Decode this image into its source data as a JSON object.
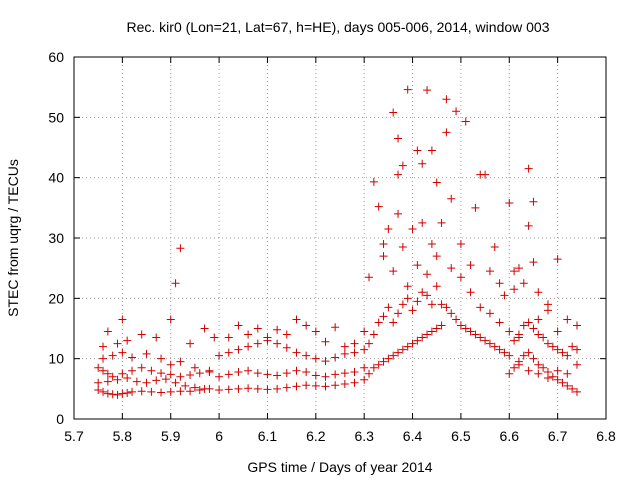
{
  "chart_data": {
    "type": "scatter",
    "title": "Rec. kir0 (Lon=21, Lat=67, h=HE), days 005-006, 2014, window 003",
    "xlabel": "GPS time / Days of year 2014",
    "ylabel": "STEC from uqrg / TECUs",
    "xlim": [
      5.7,
      6.8
    ],
    "ylim": [
      0,
      60
    ],
    "xticks": [
      "5.7",
      "5.8",
      "5.9",
      "6",
      "6.1",
      "6.2",
      "6.3",
      "6.4",
      "6.5",
      "6.6",
      "6.7",
      "6.8"
    ],
    "yticks": [
      "0",
      "10",
      "20",
      "30",
      "40",
      "50",
      "60"
    ],
    "grid": true,
    "marker": "+",
    "color": "#d00000",
    "series": [
      {
        "name": "STEC",
        "points": [
          [
            5.75,
            4.8
          ],
          [
            5.76,
            4.5
          ],
          [
            5.77,
            4.2
          ],
          [
            5.78,
            4.1
          ],
          [
            5.79,
            4.0
          ],
          [
            5.8,
            4.2
          ],
          [
            5.81,
            4.3
          ],
          [
            5.82,
            4.5
          ],
          [
            5.84,
            4.6
          ],
          [
            5.86,
            4.5
          ],
          [
            5.88,
            4.4
          ],
          [
            5.9,
            4.5
          ],
          [
            5.92,
            4.6
          ],
          [
            5.94,
            4.6
          ],
          [
            5.96,
            4.8
          ],
          [
            5.98,
            5.0
          ],
          [
            5.75,
            8.5
          ],
          [
            5.76,
            8.0
          ],
          [
            5.77,
            7.5
          ],
          [
            5.78,
            7.0
          ],
          [
            5.8,
            7.5
          ],
          [
            5.82,
            8.0
          ],
          [
            5.84,
            8.5
          ],
          [
            5.86,
            8.0
          ],
          [
            5.88,
            7.6
          ],
          [
            5.9,
            7.4
          ],
          [
            5.92,
            7.0
          ],
          [
            5.94,
            7.3
          ],
          [
            5.96,
            7.6
          ],
          [
            5.98,
            7.8
          ],
          [
            5.75,
            6.0
          ],
          [
            5.77,
            6.2
          ],
          [
            5.79,
            6.5
          ],
          [
            5.81,
            6.8
          ],
          [
            5.83,
            6.2
          ],
          [
            5.85,
            6.0
          ],
          [
            5.87,
            6.4
          ],
          [
            5.89,
            6.6
          ],
          [
            5.91,
            6.0
          ],
          [
            5.93,
            5.5
          ],
          [
            5.95,
            5.2
          ],
          [
            5.97,
            5.0
          ],
          [
            5.76,
            10.0
          ],
          [
            5.78,
            10.5
          ],
          [
            5.8,
            11.0
          ],
          [
            5.82,
            10.2
          ],
          [
            5.85,
            10.8
          ],
          [
            5.88,
            10.0
          ],
          [
            5.9,
            9.0
          ],
          [
            5.92,
            9.5
          ],
          [
            5.95,
            8.5
          ],
          [
            5.98,
            8.0
          ],
          [
            5.76,
            12.0
          ],
          [
            5.77,
            14.5
          ],
          [
            5.79,
            12.5
          ],
          [
            5.8,
            16.5
          ],
          [
            5.81,
            13.0
          ],
          [
            5.84,
            14.0
          ],
          [
            5.87,
            13.5
          ],
          [
            5.9,
            16.5
          ],
          [
            5.91,
            22.5
          ],
          [
            5.92,
            28.3
          ],
          [
            5.94,
            12.5
          ],
          [
            5.97,
            15.0
          ],
          [
            5.99,
            13.5
          ],
          [
            6.0,
            4.8
          ],
          [
            6.02,
            4.9
          ],
          [
            6.04,
            5.0
          ],
          [
            6.06,
            5.1
          ],
          [
            6.08,
            5.0
          ],
          [
            6.1,
            4.9
          ],
          [
            6.12,
            5.0
          ],
          [
            6.14,
            5.2
          ],
          [
            6.16,
            5.4
          ],
          [
            6.18,
            5.6
          ],
          [
            6.2,
            5.5
          ],
          [
            6.22,
            5.4
          ],
          [
            6.24,
            5.6
          ],
          [
            6.26,
            5.8
          ],
          [
            6.28,
            6.0
          ],
          [
            6.3,
            6.5
          ],
          [
            6.0,
            7.0
          ],
          [
            6.02,
            7.4
          ],
          [
            6.04,
            7.8
          ],
          [
            6.06,
            8.0
          ],
          [
            6.08,
            7.6
          ],
          [
            6.1,
            7.4
          ],
          [
            6.12,
            7.2
          ],
          [
            6.14,
            7.6
          ],
          [
            6.16,
            8.0
          ],
          [
            6.18,
            7.8
          ],
          [
            6.2,
            7.2
          ],
          [
            6.22,
            7.0
          ],
          [
            6.24,
            7.4
          ],
          [
            6.26,
            7.6
          ],
          [
            6.28,
            7.8
          ],
          [
            6.3,
            8.5
          ],
          [
            6.0,
            10.5
          ],
          [
            6.02,
            11.0
          ],
          [
            6.04,
            11.5
          ],
          [
            6.06,
            12.0
          ],
          [
            6.08,
            12.5
          ],
          [
            6.1,
            13.0
          ],
          [
            6.12,
            12.5
          ],
          [
            6.14,
            11.8
          ],
          [
            6.16,
            11.0
          ],
          [
            6.18,
            10.5
          ],
          [
            6.2,
            10.0
          ],
          [
            6.22,
            9.6
          ],
          [
            6.24,
            10.2
          ],
          [
            6.26,
            10.8
          ],
          [
            6.28,
            11.0
          ],
          [
            6.3,
            11.5
          ],
          [
            6.02,
            13.5
          ],
          [
            6.04,
            15.5
          ],
          [
            6.06,
            14.0
          ],
          [
            6.08,
            15.0
          ],
          [
            6.1,
            13.5
          ],
          [
            6.12,
            14.8
          ],
          [
            6.14,
            14.0
          ],
          [
            6.16,
            16.5
          ],
          [
            6.18,
            15.5
          ],
          [
            6.2,
            14.5
          ],
          [
            6.22,
            12.8
          ],
          [
            6.24,
            15.2
          ],
          [
            6.26,
            12.0
          ],
          [
            6.28,
            12.5
          ],
          [
            6.3,
            14.5
          ],
          [
            6.31,
            7.5
          ],
          [
            6.32,
            8.5
          ],
          [
            6.33,
            9.0
          ],
          [
            6.34,
            9.5
          ],
          [
            6.35,
            10.0
          ],
          [
            6.36,
            10.5
          ],
          [
            6.37,
            11.0
          ],
          [
            6.38,
            11.5
          ],
          [
            6.39,
            12.0
          ],
          [
            6.4,
            12.5
          ],
          [
            6.41,
            13.0
          ],
          [
            6.42,
            13.5
          ],
          [
            6.43,
            14.0
          ],
          [
            6.44,
            14.5
          ],
          [
            6.45,
            15.0
          ],
          [
            6.46,
            15.5
          ],
          [
            6.31,
            12.5
          ],
          [
            6.32,
            14.0
          ],
          [
            6.33,
            16.0
          ],
          [
            6.34,
            17.0
          ],
          [
            6.35,
            18.5
          ],
          [
            6.36,
            16.0
          ],
          [
            6.37,
            17.5
          ],
          [
            6.38,
            19.0
          ],
          [
            6.39,
            20.0
          ],
          [
            6.4,
            18.0
          ],
          [
            6.41,
            19.5
          ],
          [
            6.42,
            21.0
          ],
          [
            6.43,
            20.5
          ],
          [
            6.44,
            19.0
          ],
          [
            6.45,
            22.0
          ],
          [
            6.31,
            23.5
          ],
          [
            6.32,
            39.3
          ],
          [
            6.33,
            35.2
          ],
          [
            6.34,
            29.0
          ],
          [
            6.35,
            31.5
          ],
          [
            6.36,
            50.8
          ],
          [
            6.37,
            46.5
          ],
          [
            6.37,
            40.5
          ],
          [
            6.38,
            42.0
          ],
          [
            6.39,
            54.6
          ],
          [
            6.4,
            31.5
          ],
          [
            6.41,
            44.5
          ],
          [
            6.42,
            32.5
          ],
          [
            6.43,
            54.5
          ],
          [
            6.44,
            44.5
          ],
          [
            6.45,
            39.2
          ],
          [
            6.34,
            27.0
          ],
          [
            6.36,
            24.5
          ],
          [
            6.37,
            34.0
          ],
          [
            6.38,
            28.5
          ],
          [
            6.39,
            22.0
          ],
          [
            6.41,
            25.5
          ],
          [
            6.42,
            42.3
          ],
          [
            6.43,
            24.0
          ],
          [
            6.44,
            29.0
          ],
          [
            6.45,
            27.0
          ],
          [
            6.46,
            32.5
          ],
          [
            6.47,
            53.0
          ],
          [
            6.46,
            19.0
          ],
          [
            6.47,
            18.5
          ],
          [
            6.48,
            17.5
          ],
          [
            6.49,
            16.5
          ],
          [
            6.5,
            15.5
          ],
          [
            6.51,
            15.0
          ],
          [
            6.52,
            14.5
          ],
          [
            6.53,
            14.0
          ],
          [
            6.54,
            13.5
          ],
          [
            6.55,
            13.0
          ],
          [
            6.56,
            12.5
          ],
          [
            6.57,
            12.0
          ],
          [
            6.58,
            11.5
          ],
          [
            6.59,
            11.0
          ],
          [
            6.6,
            10.5
          ],
          [
            6.47,
            47.5
          ],
          [
            6.48,
            36.5
          ],
          [
            6.49,
            51.0
          ],
          [
            6.5,
            29.0
          ],
          [
            6.51,
            49.3
          ],
          [
            6.52,
            25.5
          ],
          [
            6.53,
            35.0
          ],
          [
            6.54,
            40.5
          ],
          [
            6.55,
            40.5
          ],
          [
            6.56,
            24.5
          ],
          [
            6.57,
            28.5
          ],
          [
            6.58,
            22.5
          ],
          [
            6.59,
            20.5
          ],
          [
            6.6,
            35.8
          ],
          [
            6.61,
            24.5
          ],
          [
            6.62,
            25.0
          ],
          [
            6.48,
            25.0
          ],
          [
            6.5,
            23.5
          ],
          [
            6.52,
            21.0
          ],
          [
            6.54,
            18.5
          ],
          [
            6.56,
            17.5
          ],
          [
            6.58,
            16.0
          ],
          [
            6.6,
            14.5
          ],
          [
            6.62,
            13.5
          ],
          [
            6.64,
            41.5
          ],
          [
            6.64,
            32.0
          ],
          [
            6.65,
            36.0
          ],
          [
            6.65,
            26.0
          ],
          [
            6.66,
            16.5
          ],
          [
            6.68,
            19.0
          ],
          [
            6.7,
            26.5
          ],
          [
            6.6,
            7.5
          ],
          [
            6.61,
            8.5
          ],
          [
            6.62,
            9.5
          ],
          [
            6.63,
            10.5
          ],
          [
            6.64,
            11.0
          ],
          [
            6.65,
            10.0
          ],
          [
            6.66,
            9.0
          ],
          [
            6.67,
            8.5
          ],
          [
            6.68,
            7.8
          ],
          [
            6.69,
            7.0
          ],
          [
            6.7,
            6.5
          ],
          [
            6.71,
            6.0
          ],
          [
            6.72,
            5.5
          ],
          [
            6.73,
            5.0
          ],
          [
            6.74,
            4.5
          ],
          [
            6.61,
            13.0
          ],
          [
            6.62,
            14.0
          ],
          [
            6.63,
            15.5
          ],
          [
            6.64,
            16.0
          ],
          [
            6.65,
            15.0
          ],
          [
            6.66,
            14.0
          ],
          [
            6.67,
            13.5
          ],
          [
            6.68,
            12.5
          ],
          [
            6.69,
            12.0
          ],
          [
            6.7,
            11.5
          ],
          [
            6.71,
            11.0
          ],
          [
            6.72,
            10.5
          ],
          [
            6.73,
            12.0
          ],
          [
            6.74,
            11.5
          ],
          [
            6.61,
            21.5
          ],
          [
            6.63,
            22.5
          ],
          [
            6.66,
            21.0
          ],
          [
            6.68,
            18.0
          ],
          [
            6.7,
            14.5
          ],
          [
            6.72,
            16.5
          ],
          [
            6.74,
            15.5
          ],
          [
            6.62,
            9.0
          ],
          [
            6.64,
            8.0
          ],
          [
            6.66,
            7.5
          ],
          [
            6.68,
            6.8
          ],
          [
            6.7,
            8.0
          ],
          [
            6.72,
            7.5
          ],
          [
            6.74,
            9.0
          ]
        ]
      }
    ]
  }
}
